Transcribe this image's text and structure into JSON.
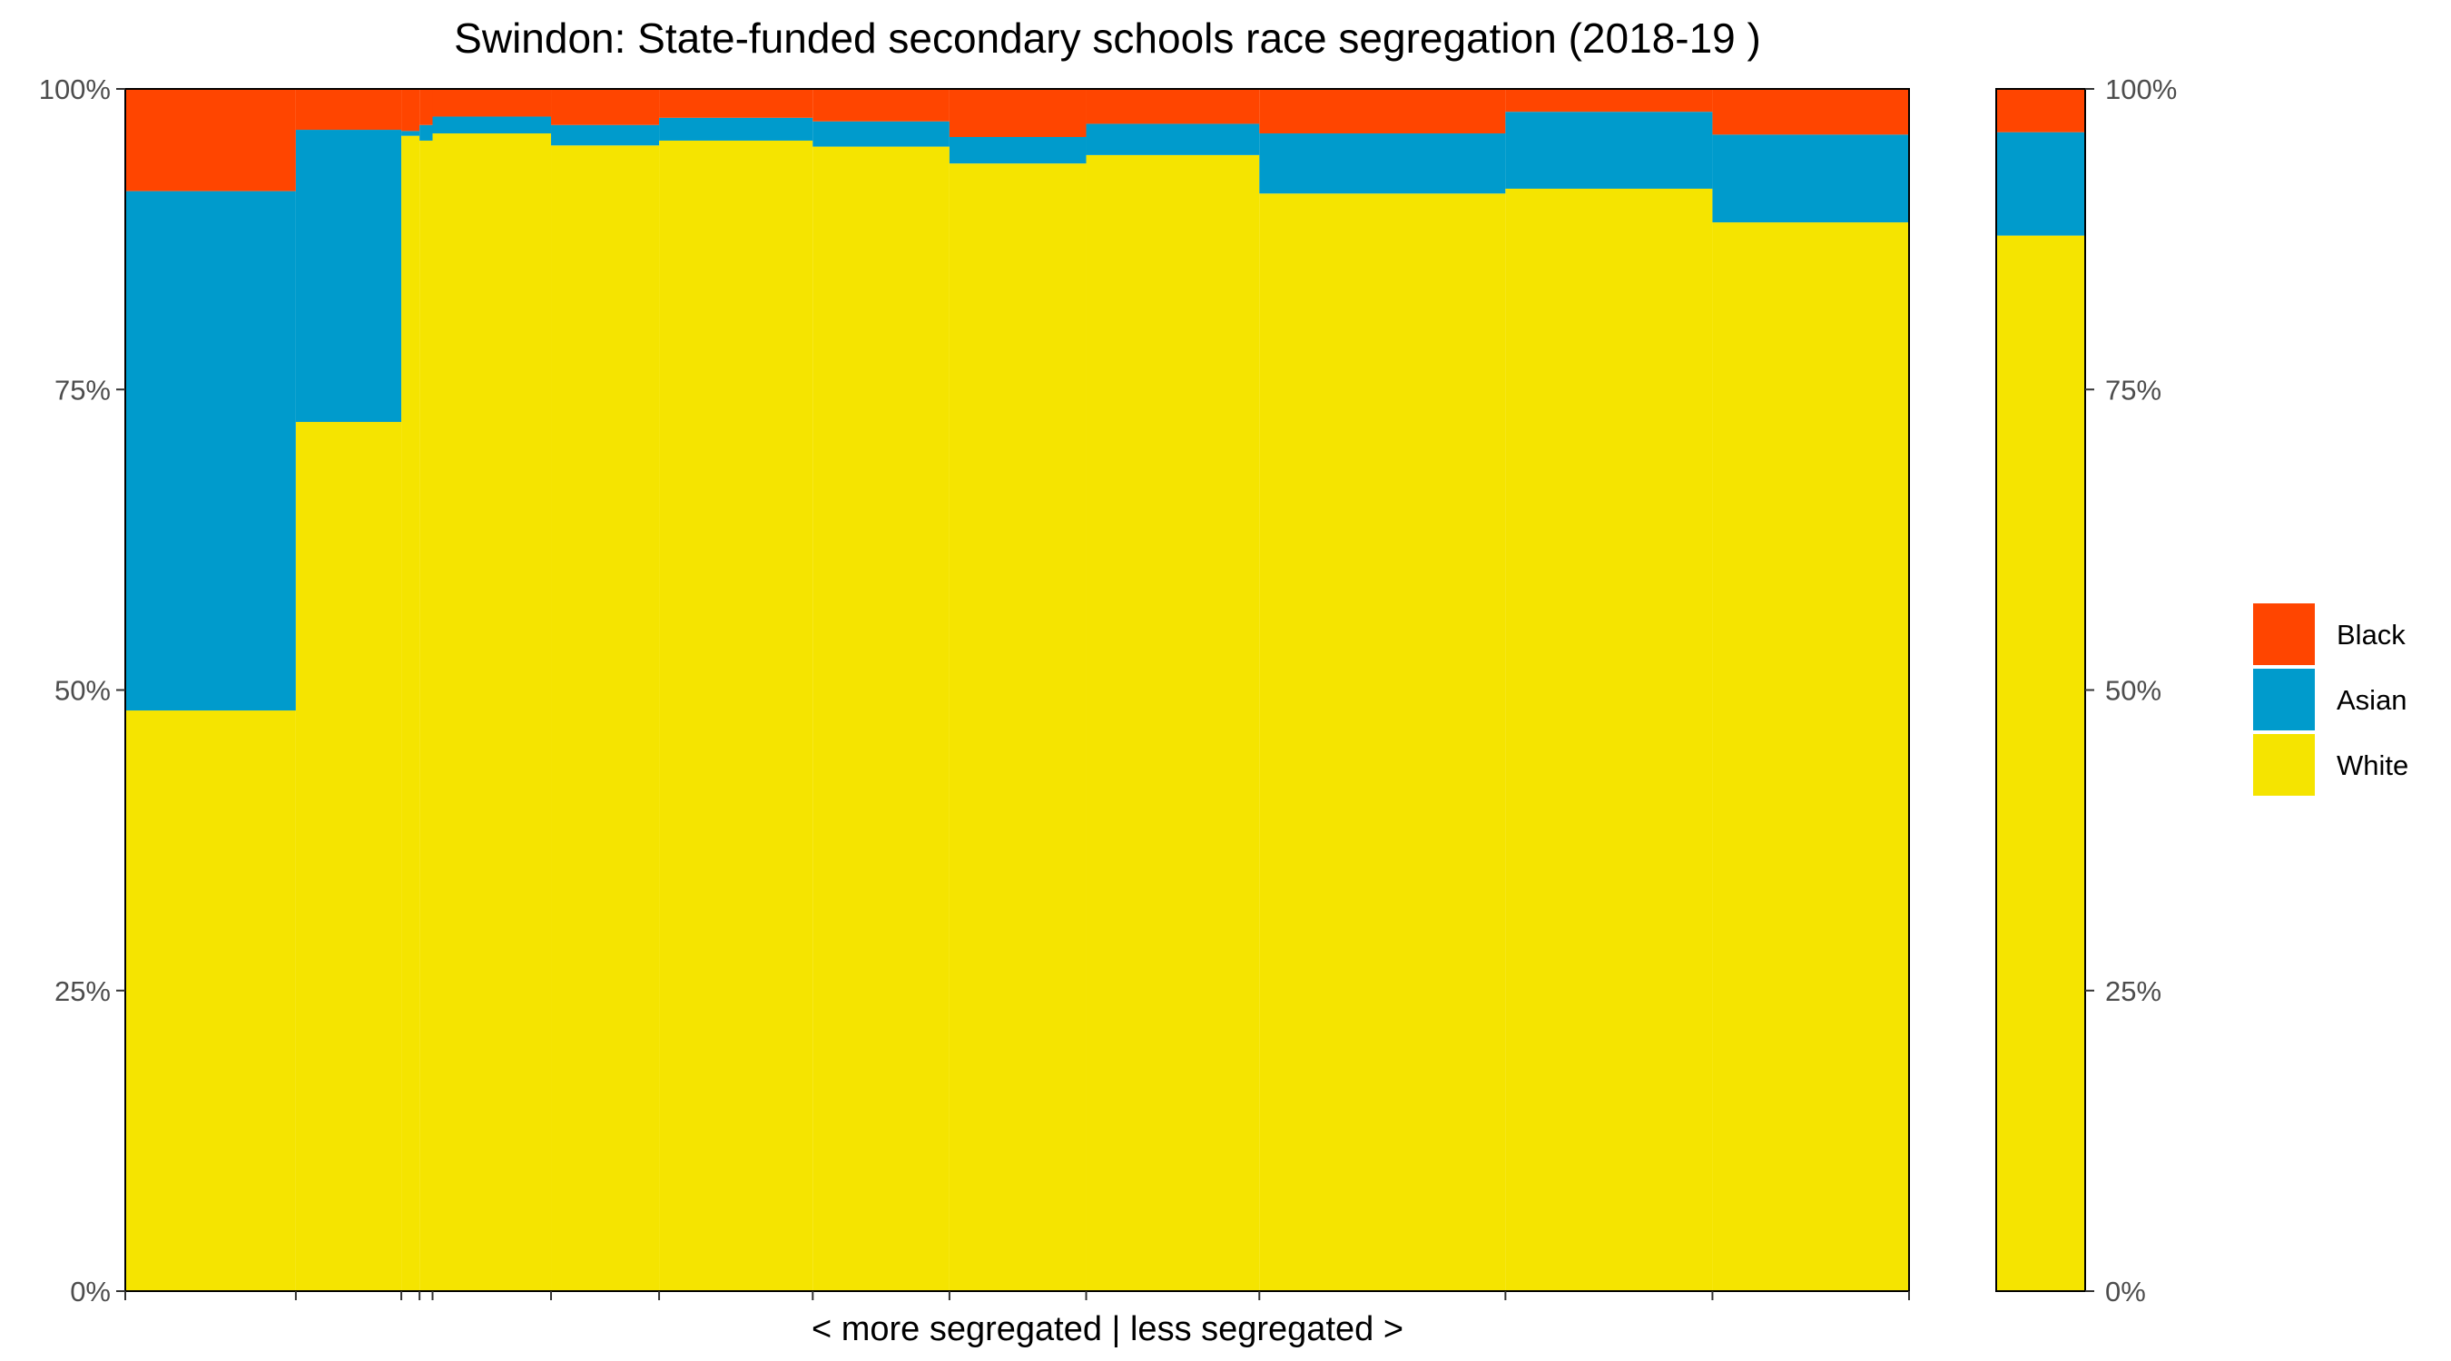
{
  "chart_data": {
    "type": "bar",
    "subtype": "stacked-variable-width (marimekko)",
    "title": "Swindon: State-funded secondary schools race segregation (2018-19 )",
    "xlabel": "< more segregated | less segregated >",
    "ylabel": "",
    "ylim": [
      0,
      100
    ],
    "y_tick_labels": [
      "0%",
      "25%",
      "50%",
      "75%",
      "100%"
    ],
    "grid": false,
    "legend_position": "right",
    "series": [
      {
        "name": "White",
        "color": "#f5e400"
      },
      {
        "name": "Asian",
        "color": "#009bcc"
      },
      {
        "name": "Black",
        "color": "#ff4500"
      }
    ],
    "legend_order": [
      "Black",
      "Asian",
      "White"
    ],
    "schools": [
      {
        "x_start": 0.0,
        "x_end": 13.1,
        "white": 48.3,
        "asian": 43.2,
        "black": 8.5
      },
      {
        "x_start": 13.1,
        "x_end": 21.2,
        "white": 72.3,
        "asian": 24.3,
        "black": 3.4
      },
      {
        "x_start": 21.2,
        "x_end": 22.6,
        "white": 96.1,
        "asian": 0.4,
        "black": 3.5
      },
      {
        "x_start": 22.6,
        "x_end": 23.6,
        "white": 95.7,
        "asian": 1.3,
        "black": 3.0
      },
      {
        "x_start": 23.6,
        "x_end": 32.7,
        "white": 96.3,
        "asian": 1.4,
        "black": 2.3
      },
      {
        "x_start": 32.7,
        "x_end": 41.0,
        "white": 95.3,
        "asian": 1.7,
        "black": 3.0
      },
      {
        "x_start": 41.0,
        "x_end": 52.8,
        "white": 95.7,
        "asian": 1.9,
        "black": 2.4
      },
      {
        "x_start": 52.8,
        "x_end": 63.3,
        "white": 95.2,
        "asian": 2.1,
        "black": 2.7
      },
      {
        "x_start": 63.3,
        "x_end": 73.8,
        "white": 93.8,
        "asian": 2.2,
        "black": 4.0
      },
      {
        "x_start": 73.8,
        "x_end": 87.1,
        "white": 94.5,
        "asian": 2.6,
        "black": 2.9
      },
      {
        "x_start": 87.1,
        "x_end": 106.0,
        "white": 91.3,
        "asian": 5.0,
        "black": 3.7
      },
      {
        "x_start": 106.0,
        "x_end": 121.9,
        "white": 91.7,
        "asian": 6.4,
        "black": 1.9
      },
      {
        "x_start": 121.9,
        "x_end": 137.0,
        "white": 88.9,
        "asian": 7.3,
        "black": 3.8
      }
    ],
    "overall": {
      "white": 87.8,
      "asian": 8.6,
      "black": 3.6
    }
  }
}
